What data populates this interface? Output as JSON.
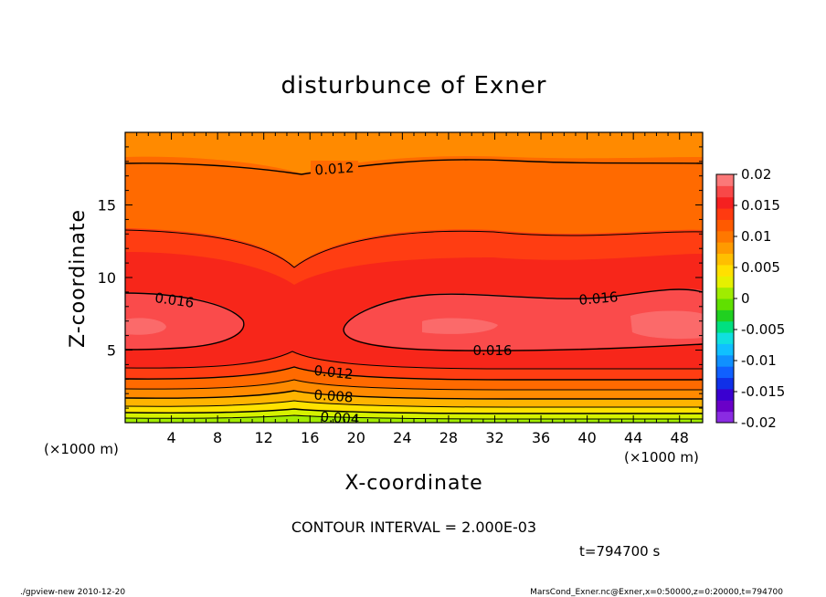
{
  "chart_data": {
    "type": "heatmap",
    "subtype": "filled-contour",
    "title": "disturbunce of Exner",
    "xlabel": "X-coordinate",
    "ylabel": "Z-coordinate",
    "x_unit": "(×1000 m)",
    "z_unit": "(×1000 m)",
    "xlim": [
      0,
      50
    ],
    "ylim": [
      0,
      20
    ],
    "x_ticks": [
      4,
      8,
      12,
      16,
      20,
      24,
      28,
      32,
      36,
      40,
      44,
      48
    ],
    "y_ticks": [
      5,
      10,
      15
    ],
    "contour_interval_text": "CONTOUR INTERVAL = 2.000E-03",
    "time_text": "t=794700 s",
    "contour_labels": [
      "0.012",
      "0.016",
      "0.016",
      "0.016",
      "0.012",
      "0.008",
      "0.004"
    ],
    "colorbar": {
      "ticks": [
        "0.02",
        "0.015",
        "0.01",
        "0.005",
        "0",
        "-0.005",
        "-0.01",
        "-0.015",
        "-0.02"
      ],
      "range": [
        -0.02,
        0.02
      ]
    },
    "grid": false
  },
  "footer": {
    "left": "./gpview-new   2010-12-20",
    "right": "MarsCond_Exner.nc@Exner,x=0:50000,z=0:20000,t=794700"
  }
}
